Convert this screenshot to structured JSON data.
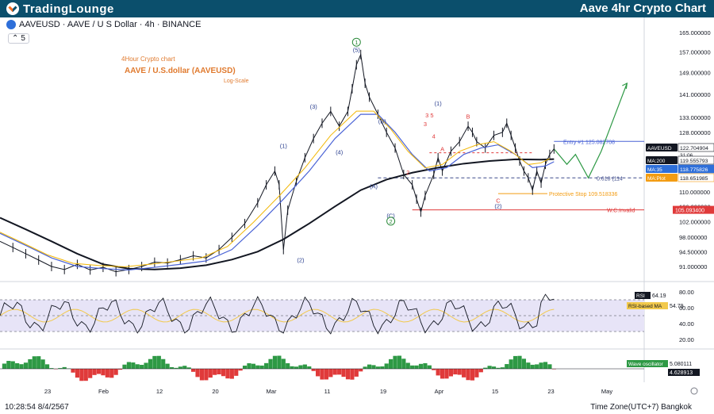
{
  "header": {
    "logo_main": "TradingLounge",
    "title": "Aave 4hr Crypto Chart"
  },
  "symbol": {
    "text": "AAVEUSD · AAVE / U S Dollar · 4h · BINANCE",
    "indicator_count": "5"
  },
  "annotation": {
    "line1": "4Hour Crypto chart",
    "line2": "AAVE / U.S.dollar (AAVEUSD)",
    "line3": "Log-Scale"
  },
  "footer": {
    "timestamp": "10:28:54 8/4/2567",
    "timezone": "Time Zone(UTC+7) Bangkok"
  },
  "colors": {
    "price": "#131722",
    "ma200": "#131722",
    "ma35": "#4a63d6",
    "ma_fast": "#f2b705",
    "wave_count_red": "#e03a3a",
    "wave_count_blue": "#2a3f8f",
    "wave_count_green": "#2e8b3d",
    "projection": "#2e9945",
    "entry": "#4a63d6",
    "stop": "#f39c12",
    "invalid": "#e03a3a",
    "rsi": "#131722",
    "rsi_ma": "#f2c94c",
    "rsi_band": "#e7e4f7",
    "osc_pos": "#2e9945",
    "osc_neg": "#e03a3a"
  },
  "chart_data": {
    "type": "line",
    "log_scale": true,
    "x_ticks": [
      "23",
      "Feb",
      "12",
      "20",
      "Mar",
      "11",
      "19",
      "Apr",
      "15",
      "23",
      "May"
    ],
    "price_ticks": [
      "165.000000",
      "157.000000",
      "149.000000",
      "141.000000",
      "133.000000",
      "128.000000",
      "110.000000",
      "106.000000",
      "102.000000",
      "98.000000",
      "94.500000",
      "91.000000"
    ],
    "price_series": [
      [
        0,
        97
      ],
      [
        3,
        95.5
      ],
      [
        6,
        94
      ],
      [
        9,
        92.5
      ],
      [
        12,
        91
      ],
      [
        15,
        90.3
      ],
      [
        18,
        91.5
      ],
      [
        21,
        90.2
      ],
      [
        24,
        90.8
      ],
      [
        27,
        89.8
      ],
      [
        30,
        90.3
      ],
      [
        33,
        91
      ],
      [
        36,
        92
      ],
      [
        39,
        91.8
      ],
      [
        42,
        92.6
      ],
      [
        45,
        93.5
      ],
      [
        48,
        93
      ],
      [
        51,
        95
      ],
      [
        54,
        98
      ],
      [
        57,
        101.5
      ],
      [
        60,
        107
      ],
      [
        62,
        112
      ],
      [
        64,
        116
      ],
      [
        65,
        112
      ],
      [
        66,
        95
      ],
      [
        67,
        105
      ],
      [
        69,
        113
      ],
      [
        71,
        120
      ],
      [
        73,
        126
      ],
      [
        75,
        131
      ],
      [
        77,
        135
      ],
      [
        79,
        130
      ],
      [
        81,
        135
      ],
      [
        82,
        143
      ],
      [
        83,
        152
      ],
      [
        84,
        156
      ],
      [
        85,
        145
      ],
      [
        86,
        140
      ],
      [
        88,
        134
      ],
      [
        90,
        128
      ],
      [
        92,
        123
      ],
      [
        94,
        115
      ],
      [
        96,
        112
      ],
      [
        97,
        108
      ],
      [
        98,
        104.5
      ],
      [
        99,
        109
      ],
      [
        101,
        115
      ],
      [
        102,
        120
      ],
      [
        103,
        116
      ],
      [
        105,
        122
      ],
      [
        107,
        125
      ],
      [
        109,
        130
      ],
      [
        110,
        128
      ],
      [
        111,
        125
      ],
      [
        113,
        123
      ],
      [
        115,
        127
      ],
      [
        117,
        128
      ],
      [
        118,
        131
      ],
      [
        119,
        127
      ],
      [
        120,
        123
      ],
      [
        121,
        119
      ],
      [
        122,
        116
      ],
      [
        123,
        114
      ],
      [
        124,
        110.5
      ],
      [
        125,
        116
      ],
      [
        126,
        112.5
      ],
      [
        127,
        118
      ],
      [
        128,
        121
      ],
      [
        129,
        122.7
      ]
    ],
    "ma200_series": [
      [
        0,
        103
      ],
      [
        6,
        100
      ],
      [
        12,
        97
      ],
      [
        18,
        94
      ],
      [
        24,
        91.5
      ],
      [
        30,
        90.5
      ],
      [
        36,
        90.3
      ],
      [
        42,
        90.6
      ],
      [
        48,
        91.3
      ],
      [
        54,
        92.6
      ],
      [
        60,
        94.5
      ],
      [
        66,
        97.5
      ],
      [
        72,
        101.5
      ],
      [
        78,
        106
      ],
      [
        84,
        110.5
      ],
      [
        90,
        113.5
      ],
      [
        96,
        115.5
      ],
      [
        102,
        117
      ],
      [
        108,
        118.2
      ],
      [
        114,
        119
      ],
      [
        120,
        119.5
      ],
      [
        126,
        119.4
      ],
      [
        129,
        119.56
      ]
    ],
    "ma35_series": [
      [
        0,
        99
      ],
      [
        6,
        96
      ],
      [
        12,
        93
      ],
      [
        18,
        91
      ],
      [
        24,
        90.5
      ],
      [
        30,
        90.2
      ],
      [
        36,
        90.8
      ],
      [
        42,
        91.5
      ],
      [
        48,
        92.3
      ],
      [
        54,
        95
      ],
      [
        60,
        101
      ],
      [
        66,
        108
      ],
      [
        72,
        116
      ],
      [
        78,
        126
      ],
      [
        84,
        134
      ],
      [
        88,
        134
      ],
      [
        92,
        128
      ],
      [
        96,
        121
      ],
      [
        100,
        116
      ],
      [
        104,
        117
      ],
      [
        108,
        121
      ],
      [
        112,
        123
      ],
      [
        116,
        124
      ],
      [
        120,
        121
      ],
      [
        124,
        117
      ],
      [
        127,
        117.5
      ],
      [
        129,
        118.78
      ]
    ],
    "entry": {
      "label": "Entry #1",
      "value": 125.082708
    },
    "fib_0618": {
      "label": "0.618 (114",
      "value": 114
    },
    "protective_stop": {
      "label": "Protective Stop",
      "value": 109.518336
    },
    "wc_invalid": {
      "label": "W.C.Invalid",
      "value": 105.0934
    },
    "price_tags": [
      {
        "label": "AAVEUSD",
        "value": "122.704904",
        "countdown": "31:06"
      },
      {
        "label": "MA:200",
        "value": "119.555793"
      },
      {
        "label": "MA:35",
        "value": "118.775826"
      },
      {
        "label": "MA:Plot",
        "value": "118.651985"
      }
    ],
    "wave_labels": [
      {
        "text": "1",
        "x": 83,
        "y": 160,
        "color": "green",
        "circled": true
      },
      {
        "text": "(5)",
        "x": 83,
        "y": 157,
        "color": "blue"
      },
      {
        "text": "(3)",
        "x": 73,
        "y": 136,
        "color": "blue"
      },
      {
        "text": "(1)",
        "x": 66,
        "y": 123,
        "color": "blue"
      },
      {
        "text": "(4)",
        "x": 79,
        "y": 121,
        "color": "blue"
      },
      {
        "text": "(2)",
        "x": 70,
        "y": 92,
        "color": "blue"
      },
      {
        "text": "(B)",
        "x": 89,
        "y": 131,
        "color": "blue"
      },
      {
        "text": "(A)",
        "x": 87,
        "y": 111,
        "color": "blue"
      },
      {
        "text": "(C)",
        "x": 91,
        "y": 103,
        "color": "blue"
      },
      {
        "text": "2",
        "x": 91,
        "y": 101.5,
        "color": "green",
        "circled": true
      },
      {
        "text": "(1)",
        "x": 102,
        "y": 137,
        "color": "blue"
      },
      {
        "text": "3",
        "x": 99,
        "y": 130,
        "color": "red"
      },
      {
        "text": "4",
        "x": 101,
        "y": 126,
        "color": "red"
      },
      {
        "text": "3 5",
        "x": 100,
        "y": 133,
        "color": "red"
      },
      {
        "text": "B",
        "x": 109,
        "y": 132.5,
        "color": "red"
      },
      {
        "text": "2",
        "x": 95,
        "y": 115,
        "color": "red"
      },
      {
        "text": "C",
        "x": 116,
        "y": 107,
        "color": "red"
      },
      {
        "text": "(2)",
        "x": 116,
        "y": 105.5,
        "color": "blue"
      },
      {
        "text": "A",
        "x": 103,
        "y": 122,
        "color": "red"
      }
    ],
    "projection": [
      [
        129,
        122.7
      ],
      [
        132,
        118
      ],
      [
        134,
        121
      ],
      [
        137,
        114
      ],
      [
        140,
        122
      ],
      [
        146,
        145
      ]
    ],
    "rsi": {
      "label": "RSI",
      "value": "64.19",
      "ma_label": "RSI-based MA",
      "ma_value": "54.79",
      "ticks": [
        "80.00",
        "60.00",
        "40.00",
        "20.00"
      ],
      "upper": 70,
      "lower": 30
    },
    "oscillator": {
      "label": "Wave oscillator",
      "value1": "5.080111",
      "value2": "4.628913"
    }
  }
}
